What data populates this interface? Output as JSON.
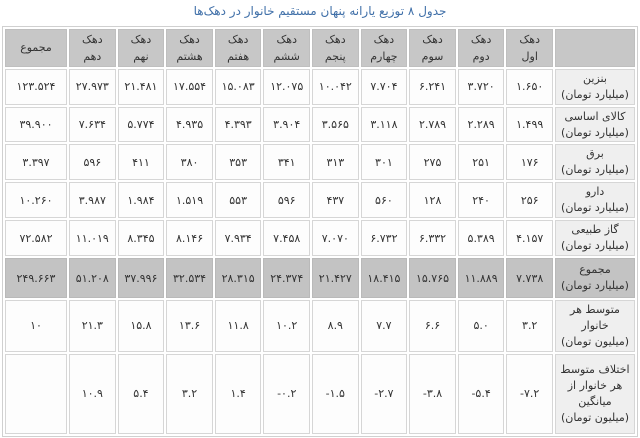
{
  "title": {
    "text": "جدول ۸ توزیع یارانه پنهان مستقیم خانوار در دهک‌ها"
  },
  "colors": {
    "title_color": "#3f6fa8",
    "header_bg": "#c7c7c7",
    "total_row_bg": "#c3c3c3",
    "label_col_bg": "#efefef",
    "cell_bg": "#fdfdfd",
    "grid_border": "#d6d6d6",
    "text": "#333333"
  },
  "chart_data": {
    "type": "table",
    "title": "جدول ۸ توزیع یارانه پنهان مستقیم خانوار در دهک‌ها",
    "direction": "rtl",
    "corner_label": "",
    "columns": [
      {
        "line1": "دهک",
        "line2": "اول"
      },
      {
        "line1": "دهک",
        "line2": "دوم"
      },
      {
        "line1": "دهک",
        "line2": "سوم"
      },
      {
        "line1": "دهک",
        "line2": "چهارم"
      },
      {
        "line1": "دهک",
        "line2": "پنجم"
      },
      {
        "line1": "دهک",
        "line2": "ششم"
      },
      {
        "line1": "دهک",
        "line2": "هفتم"
      },
      {
        "line1": "دهک",
        "line2": "هشتم"
      },
      {
        "line1": "دهک",
        "line2": "نهم"
      },
      {
        "line1": "دهک",
        "line2": "دهم"
      },
      {
        "line1": "مجموع",
        "line2": ""
      }
    ],
    "rows": [
      {
        "label": "بنزین",
        "unit": "(میلیارد تومان)",
        "highlight": false,
        "values": [
          "۱.۶۵۰",
          "۳.۷۲۰",
          "۶.۲۴۱",
          "۷.۷۰۴",
          "۱۰.۰۴۲",
          "۱۲.۰۷۵",
          "۱۵.۰۸۳",
          "۱۷.۵۵۴",
          "۲۱.۴۸۱",
          "۲۷.۹۷۳",
          "۱۲۳.۵۲۴"
        ]
      },
      {
        "label": "کالای اساسی",
        "unit": "(میلیارد تومان)",
        "highlight": false,
        "values": [
          "۱.۴۹۹",
          "۲.۲۸۹",
          "۲.۷۸۹",
          "۳.۱۱۸",
          "۳.۵۶۵",
          "۳.۹۰۴",
          "۴.۳۹۳",
          "۴.۹۳۵",
          "۵.۷۷۴",
          "۷.۶۳۴",
          "۳۹.۹۰۰"
        ]
      },
      {
        "label": "برق",
        "unit": "(میلیارد تومان)",
        "highlight": false,
        "values": [
          "۱۷۶",
          "۲۵۱",
          "۲۷۵",
          "۳۰۱",
          "۳۱۳",
          "۳۴۱",
          "۳۵۳",
          "۳۸۰",
          "۴۱۱",
          "۵۹۶",
          "۳.۳۹۷"
        ]
      },
      {
        "label": "دارو",
        "unit": "(میلیارد تومان)",
        "highlight": false,
        "values": [
          "۲۵۶",
          "۲۴۰",
          "۱۲۸",
          "۵۶۰",
          "۴۳۷",
          "۵۹۶",
          "۵۵۳",
          "۱.۵۱۹",
          "۱.۹۸۴",
          "۳.۹۸۷",
          "۱۰.۲۶۰"
        ]
      },
      {
        "label": "گاز طبیعی",
        "unit": "(میلیارد تومان)",
        "highlight": false,
        "values": [
          "۴.۱۵۷",
          "۵.۳۸۹",
          "۶.۳۳۲",
          "۶.۷۳۲",
          "۷.۰۷۰",
          "۷.۴۵۸",
          "۷.۹۳۴",
          "۸.۱۴۶",
          "۸.۳۴۵",
          "۱۱.۰۱۹",
          "۷۲.۵۸۲"
        ]
      },
      {
        "label": "مجموع",
        "unit": "(میلیارد تومان)",
        "highlight": true,
        "values": [
          "۷.۷۳۸",
          "۱۱.۸۸۹",
          "۱۵.۷۶۵",
          "۱۸.۴۱۵",
          "۲۱.۴۲۷",
          "۲۴.۳۷۴",
          "۲۸.۳۱۵",
          "۳۲.۵۳۴",
          "۳۷.۹۹۶",
          "۵۱.۲۰۸",
          "۲۴۹.۶۶۳"
        ]
      },
      {
        "label": "متوسط هر خانوار",
        "unit": "(میلیون تومان)",
        "highlight": false,
        "values": [
          "۳.۲",
          "۵.۰",
          "۶.۶",
          "۷.۷",
          "۸.۹",
          "۱۰.۲",
          "۱۱.۸",
          "۱۳.۶",
          "۱۵.۸",
          "۲۱.۳",
          "۱۰"
        ]
      },
      {
        "label": "اختلاف متوسط هر خانوار از میانگین",
        "unit": "(میلیون تومان)",
        "highlight": false,
        "values": [
          "-۷.۲",
          "-۵.۴",
          "-۳.۸",
          "-۲.۷",
          "-۱.۵",
          "-۰.۲",
          "۱.۴",
          "۳.۲",
          "۵.۴",
          "۱۰.۹",
          ""
        ]
      }
    ]
  }
}
